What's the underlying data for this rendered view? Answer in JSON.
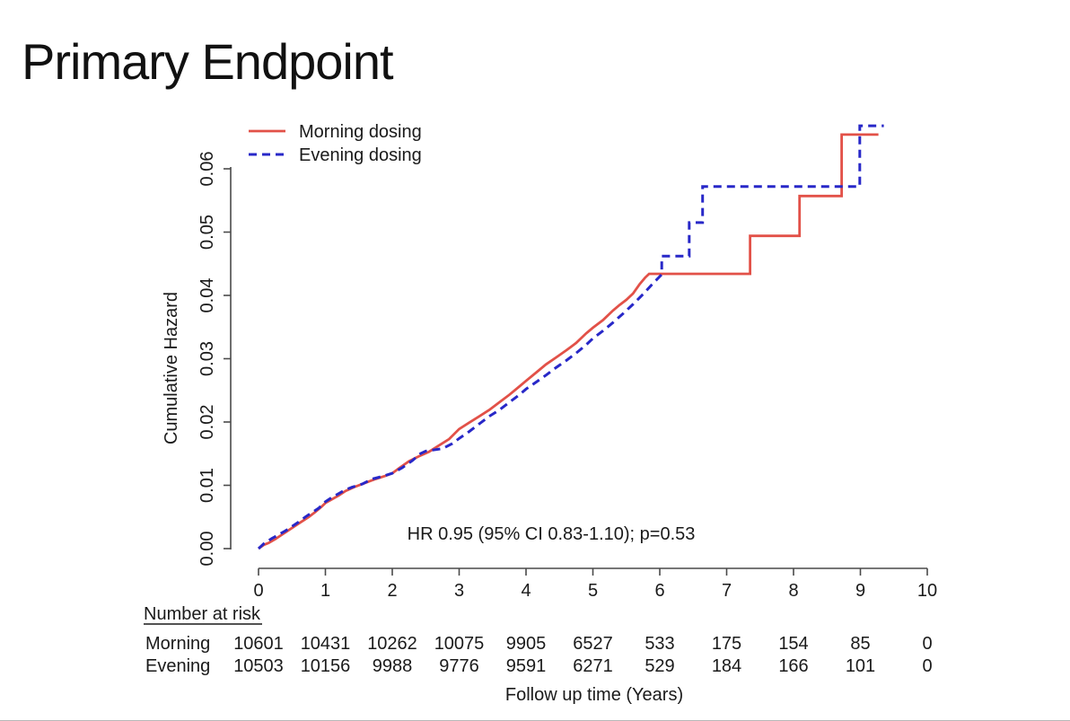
{
  "title": "Primary Endpoint",
  "chart_data": {
    "type": "line",
    "subtype": "cumulative-hazard-step-curves",
    "xlabel": "Follow up time (Years)",
    "ylabel": "Cumulative Hazard",
    "xlim": [
      0,
      10
    ],
    "ylim": [
      0,
      0.06
    ],
    "grid": "off",
    "legend_position": "top-left",
    "x_ticks": [
      "0",
      "1",
      "2",
      "3",
      "4",
      "5",
      "6",
      "7",
      "8",
      "9",
      "10"
    ],
    "y_ticks": [
      "0.00",
      "0.01",
      "0.02",
      "0.03",
      "0.04",
      "0.05",
      "0.06"
    ],
    "annotation": "HR 0.95 (95% CI 0.83-1.10); p=0.53",
    "series": [
      {
        "name": "Morning dosing",
        "color": "#e25148",
        "style": "solid",
        "points": [
          [
            0,
            0
          ],
          [
            0.08,
            0.0006
          ],
          [
            0.15,
            0.0009
          ],
          [
            0.25,
            0.0015
          ],
          [
            0.35,
            0.0022
          ],
          [
            0.45,
            0.0029
          ],
          [
            0.55,
            0.0036
          ],
          [
            0.65,
            0.0043
          ],
          [
            0.75,
            0.005
          ],
          [
            0.85,
            0.0058
          ],
          [
            0.95,
            0.0067
          ],
          [
            1.0,
            0.0072
          ],
          [
            1.1,
            0.0078
          ],
          [
            1.2,
            0.0084
          ],
          [
            1.3,
            0.0091
          ],
          [
            1.45,
            0.0098
          ],
          [
            1.6,
            0.0104
          ],
          [
            1.75,
            0.011
          ],
          [
            1.9,
            0.0115
          ],
          [
            2.0,
            0.0119
          ],
          [
            2.1,
            0.0127
          ],
          [
            2.25,
            0.0138
          ],
          [
            2.4,
            0.0146
          ],
          [
            2.55,
            0.0153
          ],
          [
            2.7,
            0.0163
          ],
          [
            2.85,
            0.0173
          ],
          [
            3.0,
            0.0189
          ],
          [
            3.15,
            0.0199
          ],
          [
            3.3,
            0.0209
          ],
          [
            3.45,
            0.0219
          ],
          [
            3.6,
            0.0231
          ],
          [
            3.75,
            0.0243
          ],
          [
            3.9,
            0.0256
          ],
          [
            4.0,
            0.0265
          ],
          [
            4.15,
            0.0278
          ],
          [
            4.3,
            0.0291
          ],
          [
            4.45,
            0.0302
          ],
          [
            4.6,
            0.0313
          ],
          [
            4.75,
            0.0325
          ],
          [
            4.9,
            0.034
          ],
          [
            5.0,
            0.0349
          ],
          [
            5.15,
            0.0361
          ],
          [
            5.3,
            0.0376
          ],
          [
            5.4,
            0.0385
          ],
          [
            5.5,
            0.0393
          ],
          [
            5.6,
            0.0403
          ],
          [
            5.7,
            0.0418
          ],
          [
            5.78,
            0.0428
          ],
          [
            5.84,
            0.0434
          ],
          [
            7.35,
            0.0434
          ],
          [
            7.35,
            0.0494
          ],
          [
            8.09,
            0.0494
          ],
          [
            8.09,
            0.0557
          ],
          [
            8.72,
            0.0557
          ],
          [
            8.72,
            0.0654
          ],
          [
            9.27,
            0.0654
          ]
        ]
      },
      {
        "name": "Evening dosing",
        "color": "#2828c8",
        "style": "dashed",
        "points": [
          [
            0,
            0
          ],
          [
            0.08,
            0.0008
          ],
          [
            0.2,
            0.0016
          ],
          [
            0.3,
            0.0022
          ],
          [
            0.4,
            0.0028
          ],
          [
            0.5,
            0.0035
          ],
          [
            0.6,
            0.0042
          ],
          [
            0.7,
            0.005
          ],
          [
            0.8,
            0.0057
          ],
          [
            0.9,
            0.0064
          ],
          [
            1.0,
            0.0074
          ],
          [
            1.1,
            0.0081
          ],
          [
            1.2,
            0.0087
          ],
          [
            1.3,
            0.0093
          ],
          [
            1.4,
            0.0097
          ],
          [
            1.55,
            0.0102
          ],
          [
            1.7,
            0.011
          ],
          [
            1.85,
            0.0114
          ],
          [
            2.0,
            0.0119
          ],
          [
            2.15,
            0.0128
          ],
          [
            2.3,
            0.0139
          ],
          [
            2.42,
            0.015
          ],
          [
            2.5,
            0.0154
          ],
          [
            2.75,
            0.0158
          ],
          [
            2.9,
            0.0166
          ],
          [
            3.0,
            0.0174
          ],
          [
            3.15,
            0.0185
          ],
          [
            3.3,
            0.0197
          ],
          [
            3.45,
            0.0209
          ],
          [
            3.6,
            0.0219
          ],
          [
            3.75,
            0.0231
          ],
          [
            3.9,
            0.0243
          ],
          [
            4.0,
            0.0252
          ],
          [
            4.15,
            0.0263
          ],
          [
            4.3,
            0.0274
          ],
          [
            4.45,
            0.0286
          ],
          [
            4.6,
            0.0297
          ],
          [
            4.75,
            0.0309
          ],
          [
            4.9,
            0.0322
          ],
          [
            5.0,
            0.0332
          ],
          [
            5.15,
            0.0344
          ],
          [
            5.3,
            0.0357
          ],
          [
            5.45,
            0.0371
          ],
          [
            5.6,
            0.0386
          ],
          [
            5.75,
            0.0402
          ],
          [
            5.9,
            0.0419
          ],
          [
            6.03,
            0.0433
          ],
          [
            6.03,
            0.0462
          ],
          [
            6.44,
            0.0462
          ],
          [
            6.44,
            0.0515
          ],
          [
            6.64,
            0.0515
          ],
          [
            6.64,
            0.0572
          ],
          [
            8.99,
            0.0572
          ],
          [
            8.99,
            0.0668
          ],
          [
            9.35,
            0.0668
          ]
        ]
      }
    ]
  },
  "risk_table": {
    "header": "Number at risk",
    "rows": [
      {
        "label": "Morning",
        "values": [
          "10601",
          "10431",
          "10262",
          "10075",
          "9905",
          "6527",
          "533",
          "175",
          "154",
          "85",
          "0"
        ]
      },
      {
        "label": "Evening",
        "values": [
          "10503",
          "10156",
          "9988",
          "9776",
          "9591",
          "6271",
          "529",
          "184",
          "166",
          "101",
          "0"
        ]
      }
    ]
  }
}
